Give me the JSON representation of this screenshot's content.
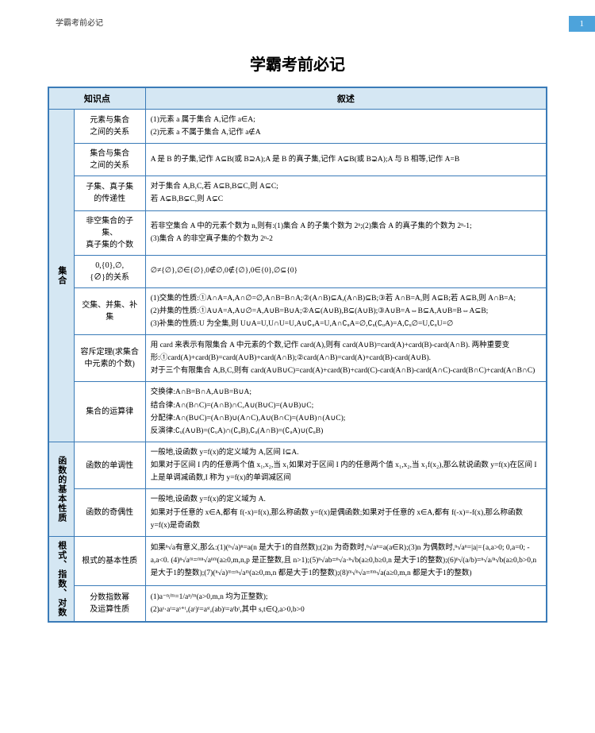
{
  "header": {
    "label": "学霸考前必记",
    "page_num": "1"
  },
  "title": "学霸考前必记",
  "colors": {
    "accent": "#3a7bb8",
    "header_bg": "#d5e7f3",
    "page_tab": "#4da3db"
  },
  "columns": {
    "knowledge": "知识点",
    "description": "叙述"
  },
  "sections": [
    {
      "category": "集合",
      "rows": [
        {
          "topic": "元素与集合\n之间的关系",
          "desc": "(1)元素 a 属于集合 A,记作 a∈A;\n(2)元素 a 不属于集合 A,记作 a∉A"
        },
        {
          "topic": "集合与集合\n之间的关系",
          "desc": "A 是 B 的子集,记作 A⊆B(或 B⊇A);A 是 B 的真子集,记作 A⊊B(或 B⊋A);A 与 B 相等,记作 A=B"
        },
        {
          "topic": "子集、真子集\n的传递性",
          "desc": "对于集合 A,B,C,若 A⊆B,B⊆C,则 A⊆C;\n若 A⊊B,B⊊C,则 A⊊C"
        },
        {
          "topic": "非空集合的子集、\n真子集的个数",
          "desc": "若非空集合 A 中的元素个数为 n,则有:(1)集合 A 的子集个数为 2ⁿ;(2)集合 A 的真子集的个数为 2ⁿ-1;\n(3)集合 A 的非空真子集的个数为 2ⁿ-2"
        },
        {
          "topic": "0,{0},∅,\n{∅}的关系",
          "desc": "∅≠{∅},∅∈{∅},0∉∅,0∉{∅},0∈{0},∅⊆{0}"
        },
        {
          "topic": "交集、并集、补集",
          "desc": "(1)交集的性质:①A∩A=A,A∩∅=∅,A∩B=B∩A;②(A∩B)⊆A,(A∩B)⊆B;③若 A∩B=A,则 A⊆B;若 A⊆B,则 A∩B=A;\n(2)并集的性质:①A∪A=A,A∪∅=A,A∪B=B∪A;②A⊆(A∪B),B⊆(A∪B);③A∪B=A⇔B⊆A,A∪B=B⇔A⊆B;\n(3)补集的性质:U 为全集,则 U∪A=U,U∩U=U,A∪∁ᵤA=U,A∩∁ᵤA=∅,∁ᵤ(∁ᵤA)=A,∁ᵤ∅=U,∁ᵤU=∅"
        },
        {
          "topic": "容斥定理(求集合\n中元素的个数)",
          "desc": "用 card 来表示有限集合 A 中元素的个数,记作 card(A),则有 card(A∪B)=card(A)+card(B)-card(A∩B). 两种重要变形:①card(A)+card(B)=card(A∪B)+card(A∩B);②card(A∩B)=card(A)+card(B)-card(A∪B).\n对于三个有限集合 A,B,C,则有 card(A∪B∪C)=card(A)+card(B)+card(C)-card(A∩B)-card(A∩C)-card(B∩C)+card(A∩B∩C)"
        },
        {
          "topic": "集合的运算律",
          "desc": "交换律:A∩B=B∩A,A∪B=B∪A;\n结合律:A∩(B∩C)=(A∩B)∩C,A∪(B∪C)=(A∪B)∪C;\n分配律:A∩(B∪C)=(A∩B)∪(A∩C),A∪(B∩C)=(A∪B)∩(A∪C);\n反演律:∁ᵤ(A∪B)=(∁ᵤA)∩(∁ᵤB),∁ᵤ(A∩B)=(∁ᵤA)∪(∁ᵤB)"
        }
      ]
    },
    {
      "category": "函数的基本性质",
      "rows": [
        {
          "topic": "函数的单调性",
          "desc": "一般地,设函数 y=f(x)的定义域为 A,区间 I⊆A.\n如果对于区间 I 内的任意两个值 x₁,x₂,当 x₁<x₂ 时,都有 f(x₁)<f(x₂),那么就说函数 y=f(x)在区间 I 上是单调增函数,I 称为 y=f(x)的单调增区间.\n如果对于区间 I 内的任意两个值 x₁,x₂,当 x₁<x₂ 时,都有 f(x₁)>f(x₂),那么就说函数 y=f(x)在区间 I 上是单调减函数,I 称为 y=f(x)的单调减区间"
        },
        {
          "topic": "函数的奇偶性",
          "desc": "一般地,设函数 y=f(x)的定义域为 A.\n如果对于任意的 x∈A,都有 f(-x)=f(x),那么称函数 y=f(x)是偶函数;如果对于任意的 x∈A,都有 f(-x)=-f(x),那么称函数 y=f(x)是奇函数"
        }
      ]
    },
    {
      "category": "根式、指数、对数",
      "rows": [
        {
          "topic": "根式的基本性质",
          "desc": "如果ⁿ√a有意义,那么:(1)(ⁿ√a)ⁿ=a(n 是大于1的自然数);(2)n 为奇数时,ⁿ√aⁿ=a(a∈R);(3)n 为偶数时,ⁿ√aⁿ=|a|={a,a>0; 0,a=0; -a,a<0. (4)ⁿ√aᵐ=ᵐⁿ√aⁿᵐ(a≥0,m,n,p 是正整数,且 n>1);(5)ⁿ√ab=ⁿ√a·ⁿ√b(a≥0,b≥0,n 是大于1的整数);(6)ⁿ√(a/b)=ⁿ√a/ⁿ√b(a≥0,b>0,n 是大于1的整数);(7)(ⁿ√a)ᵐ=ⁿ√aᵐ(a≥0,m,n 都是大于1的整数);(8)ᵐ√ⁿ√a=ᵐⁿ√a(a≥0,m,n 都是大于1的整数)"
        },
        {
          "topic": "分数指数幂\n及运算性质",
          "desc": "(1)a⁻ⁿ/ᵐ=1/aⁿ/ᵐ(a>0,m,n 均为正整数);\n(2)aˢ·aᵗ=aˢ⁺ᵗ,(aˢ)ᵗ=aˢᵗ,(ab)ᵗ=aᵗbᵗ,其中 s,t∈Q,a>0,b>0"
        }
      ]
    }
  ]
}
